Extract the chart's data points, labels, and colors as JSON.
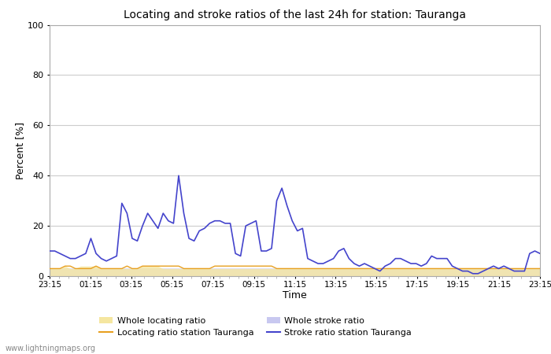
{
  "title": "Locating and stroke ratios of the last 24h for station: Tauranga",
  "xlabel": "Time",
  "ylabel": "Percent [%]",
  "ylim": [
    0,
    100
  ],
  "yticks": [
    0,
    20,
    40,
    60,
    80,
    100
  ],
  "x_labels": [
    "23:15",
    "01:15",
    "03:15",
    "05:15",
    "07:15",
    "09:15",
    "11:15",
    "13:15",
    "15:15",
    "17:15",
    "19:15",
    "21:15",
    "23:15"
  ],
  "watermark": "www.lightningmaps.org",
  "bg_color": "#ffffff",
  "plot_bg_color": "#ffffff",
  "colors": {
    "whole_locating": "#f5e6a0",
    "locating_station": "#e8a020",
    "whole_stroke": "#c8c8f0",
    "stroke_station": "#4444cc"
  },
  "whole_locating_ratio": [
    3,
    3,
    3,
    4,
    3,
    3,
    4,
    4,
    4,
    4,
    3,
    3,
    3,
    3,
    3,
    3,
    3,
    3,
    4,
    4,
    4,
    4,
    3,
    3,
    3,
    3,
    3,
    3,
    3,
    3,
    3,
    3,
    3,
    3,
    3,
    3,
    3,
    3,
    3,
    3,
    3,
    3,
    3,
    3,
    3,
    3,
    3,
    3,
    3,
    3,
    3,
    3,
    3,
    3,
    3,
    3,
    3,
    3,
    3,
    3,
    3,
    3,
    3,
    3,
    3,
    3,
    3,
    3,
    3,
    3,
    3,
    3,
    3,
    3,
    3,
    3,
    3,
    3,
    3,
    3,
    3,
    3,
    3,
    3,
    3,
    3,
    3,
    3,
    3,
    3,
    3,
    3,
    3,
    3,
    3,
    3
  ],
  "locating_station": [
    3,
    3,
    3,
    4,
    4,
    3,
    3,
    3,
    3,
    4,
    3,
    3,
    3,
    3,
    3,
    4,
    3,
    3,
    4,
    4,
    4,
    4,
    4,
    4,
    4,
    4,
    3,
    3,
    3,
    3,
    3,
    3,
    4,
    4,
    4,
    4,
    4,
    4,
    4,
    4,
    4,
    4,
    4,
    4,
    3,
    3,
    3,
    3,
    3,
    3,
    3,
    3,
    3,
    3,
    3,
    3,
    3,
    3,
    3,
    3,
    3,
    3,
    3,
    3,
    3,
    3,
    3,
    3,
    3,
    3,
    3,
    3,
    3,
    3,
    3,
    3,
    3,
    3,
    3,
    3,
    3,
    3,
    3,
    3,
    3,
    3,
    3,
    3,
    3,
    3,
    3,
    3,
    3,
    3,
    3,
    3
  ],
  "whole_stroke_ratio": [
    3,
    3,
    3,
    3,
    3,
    3,
    3,
    3,
    3,
    3,
    3,
    3,
    3,
    3,
    3,
    3,
    3,
    3,
    3,
    3,
    3,
    3,
    3,
    3,
    3,
    3,
    3,
    3,
    3,
    3,
    3,
    3,
    3,
    3,
    3,
    3,
    3,
    3,
    3,
    3,
    3,
    3,
    3,
    3,
    3,
    3,
    3,
    3,
    3,
    3,
    3,
    3,
    3,
    3,
    3,
    3,
    3,
    3,
    3,
    3,
    3,
    3,
    3,
    3,
    3,
    3,
    3,
    3,
    3,
    3,
    3,
    3,
    3,
    3,
    3,
    3,
    3,
    3,
    3,
    3,
    3,
    3,
    3,
    3,
    3,
    3,
    3,
    3,
    3,
    3,
    3,
    3,
    3,
    3,
    3,
    3
  ],
  "stroke_station": [
    10,
    10,
    9,
    8,
    7,
    7,
    8,
    9,
    15,
    9,
    7,
    6,
    7,
    8,
    29,
    25,
    15,
    14,
    20,
    25,
    22,
    19,
    25,
    22,
    21,
    40,
    25,
    15,
    14,
    18,
    19,
    21,
    22,
    22,
    21,
    21,
    9,
    8,
    20,
    21,
    22,
    10,
    10,
    11,
    30,
    35,
    28,
    22,
    18,
    19,
    7,
    6,
    5,
    5,
    6,
    7,
    10,
    11,
    7,
    5,
    4,
    5,
    4,
    3,
    2,
    4,
    5,
    7,
    7,
    6,
    5,
    5,
    4,
    5,
    8,
    7,
    7,
    7,
    4,
    3,
    2,
    2,
    1,
    1,
    2,
    3,
    4,
    3,
    4,
    3,
    2,
    2,
    2,
    9,
    10,
    9
  ]
}
